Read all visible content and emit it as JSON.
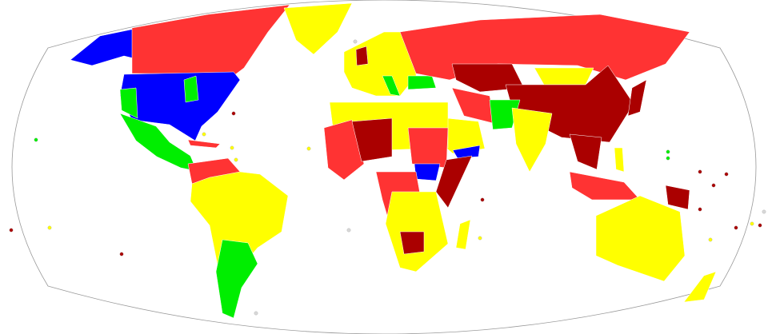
{
  "map": {
    "title": "",
    "palette": {
      "blue": "#0000ff",
      "green": "#00ee00",
      "yellow": "#ffff00",
      "red": "#ff3333",
      "dark_red": "#aa0000",
      "no_data": "#d8d8d8",
      "ocean": "#ffffff",
      "frame": "#999999"
    }
  }
}
